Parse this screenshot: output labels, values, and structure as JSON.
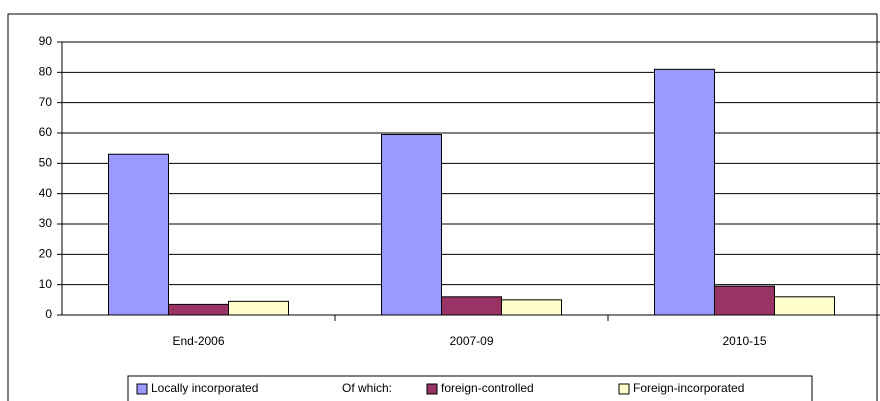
{
  "chart_data": {
    "type": "bar",
    "categories": [
      "End-2006",
      "2007-09",
      "2010-15"
    ],
    "series": [
      {
        "name": "Locally incorporated",
        "color": "#9999ff",
        "values": [
          53,
          59.5,
          81
        ]
      },
      {
        "name": "foreign-controlled",
        "color": "#993366",
        "values": [
          3.5,
          6,
          9.5
        ]
      },
      {
        "name": "Foreign-incorporated",
        "color": "#ffffcc",
        "values": [
          4.5,
          5,
          6
        ]
      }
    ],
    "legend_note": "Of which:",
    "ylim": [
      0,
      90
    ],
    "yticks": [
      0,
      10,
      20,
      30,
      40,
      50,
      60,
      70,
      80,
      90
    ],
    "grid": true,
    "legend": "bottom"
  }
}
